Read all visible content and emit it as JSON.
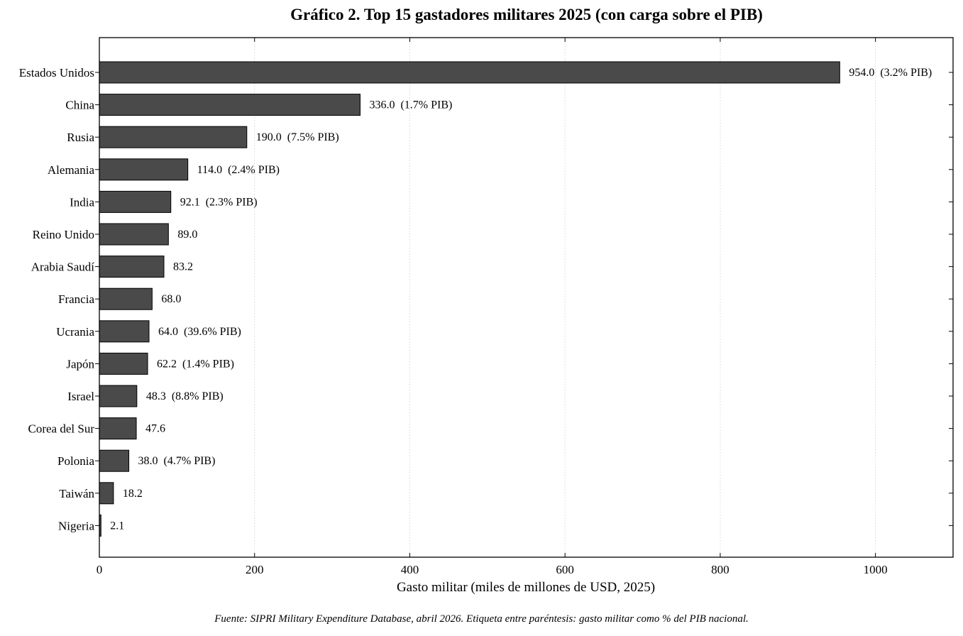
{
  "chart_data": {
    "type": "bar",
    "orientation": "horizontal",
    "title": "Gráfico 2. Top 15 gastadores militares 2025 (con carga sobre el PIB)",
    "xlabel": "Gasto militar (miles de millones de USD, 2025)",
    "ylabel": "",
    "xlim": [
      0,
      1100
    ],
    "xticks": [
      0,
      200,
      400,
      600,
      800,
      1000
    ],
    "grid": "vertical dotted",
    "bar_color": "#4a4a4a",
    "categories": [
      "Estados Unidos",
      "China",
      "Rusia",
      "Alemania",
      "India",
      "Reino Unido",
      "Arabia Saudí",
      "Francia",
      "Ucrania",
      "Japón",
      "Israel",
      "Corea del Sur",
      "Polonia",
      "Taiwán",
      "Nigeria"
    ],
    "values": [
      954.0,
      336.0,
      190.0,
      114.0,
      92.1,
      89.0,
      83.2,
      68.0,
      64.0,
      62.2,
      48.3,
      47.6,
      38.0,
      18.2,
      2.1
    ],
    "data_labels": [
      "954.0  (3.2% PIB)",
      "336.0  (1.7% PIB)",
      "190.0  (7.5% PIB)",
      "114.0  (2.4% PIB)",
      "92.1  (2.3% PIB)",
      "89.0",
      "83.2",
      "68.0",
      "64.0  (39.6% PIB)",
      "62.2  (1.4% PIB)",
      "48.3  (8.8% PIB)",
      "47.6",
      "38.0  (4.7% PIB)",
      "18.2",
      "2.1"
    ],
    "source_note": "Fuente: SIPRI Military Expenditure Database, abril 2026. Etiqueta entre paréntesis: gasto militar como % del PIB nacional."
  }
}
